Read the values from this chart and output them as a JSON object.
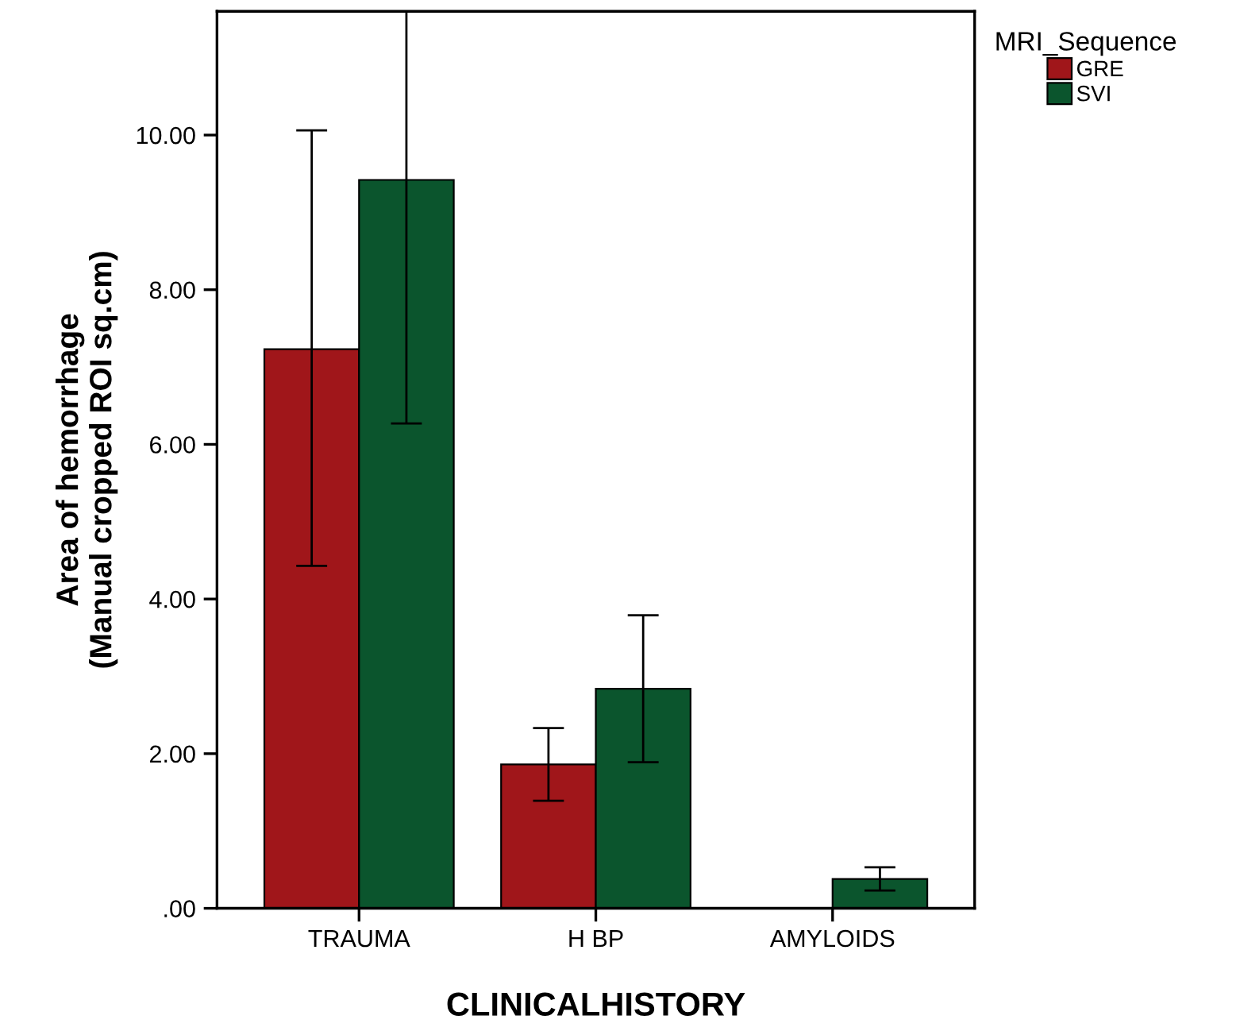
{
  "chart_data": {
    "type": "bar",
    "xlabel": "CLINICALHISTORY",
    "ylabel": "Area of hemorrhage\n(Manual cropped ROI sq.cm)",
    "legend_title": "MRI_Sequence",
    "categories": [
      "TRAUMA",
      "H BP",
      "AMYLOIDS"
    ],
    "series": [
      {
        "name": "GRE",
        "color": "#a0161a",
        "values": [
          7.23,
          1.86,
          null
        ],
        "errors": [
          [
            4.43,
            10.06
          ],
          [
            1.39,
            2.33
          ],
          null
        ]
      },
      {
        "name": "SVI",
        "color": "#0b552d",
        "values": [
          9.42,
          2.84,
          0.38
        ],
        "errors": [
          [
            6.27,
            11.6
          ],
          [
            1.89,
            3.79
          ],
          [
            0.23,
            0.53
          ]
        ]
      }
    ],
    "ylim": [
      0,
      11.6
    ],
    "yticks": [
      {
        "value": 0,
        "label": ".00"
      },
      {
        "value": 2,
        "label": "2.00"
      },
      {
        "value": 4,
        "label": "4.00"
      },
      {
        "value": 6,
        "label": "6.00"
      },
      {
        "value": 8,
        "label": "8.00"
      },
      {
        "value": 10,
        "label": "10.00"
      }
    ],
    "grid": false,
    "legend": "top right"
  }
}
